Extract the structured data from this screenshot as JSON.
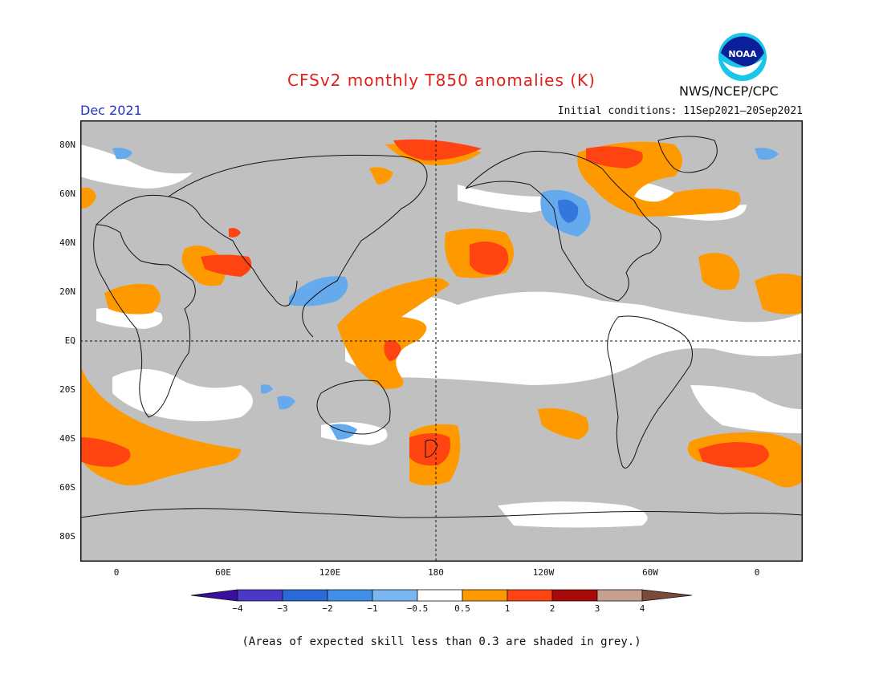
{
  "header": {
    "title": "CFSv2 monthly T850 anomalies (K)",
    "month": "Dec 2021",
    "initial_conditions": "Initial conditions: 11Sep2021–20Sep2021",
    "agency": "NWS/NCEP/CPC",
    "logo_text": "NOAA"
  },
  "map": {
    "lat_labels": [
      "80N",
      "60N",
      "40N",
      "20N",
      "EQ",
      "20S",
      "40S",
      "60S",
      "80S"
    ],
    "lon_labels": [
      "0",
      "60E",
      "120E",
      "180",
      "120W",
      "60W",
      "0"
    ],
    "colors": {
      "grey_low_skill": "#c0c0c0",
      "orange": "#ff9900",
      "red_orange": "#ff4411",
      "light_blue": "#66aaee",
      "blue": "#3377dd"
    }
  },
  "colorbar": {
    "labels": [
      "−4",
      "−3",
      "−2",
      "−1",
      "−0.5",
      "0.5",
      "1",
      "2",
      "3",
      "4"
    ],
    "colors": [
      "#3a0fa0",
      "#4b38c8",
      "#2a6ad8",
      "#3f8ee8",
      "#7ab6f2",
      "#ffffff",
      "#ff9900",
      "#ff4411",
      "#a80a0a",
      "#c8a090",
      "#7a4a3a"
    ]
  },
  "footnote": "(Areas of expected skill less than 0.3 are shaded in grey.)"
}
